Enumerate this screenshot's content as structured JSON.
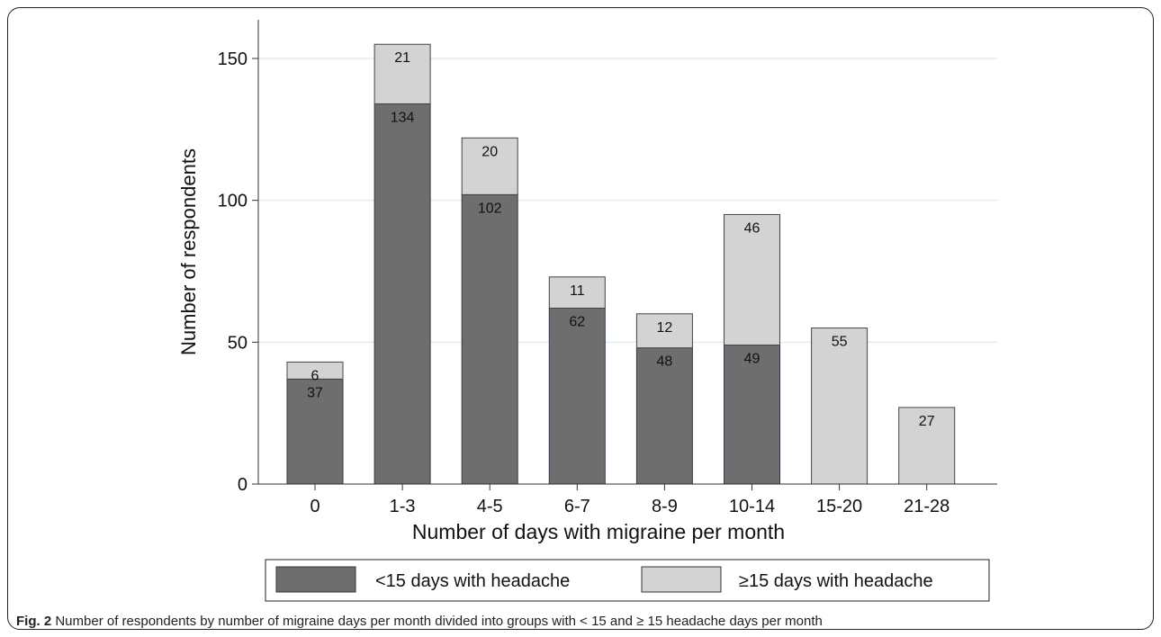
{
  "chart_data": {
    "type": "bar",
    "stacked": true,
    "categories": [
      "0",
      "1-3",
      "4-5",
      "6-7",
      "8-9",
      "10-14",
      "15-20",
      "21-28"
    ],
    "series": [
      {
        "name": "<15 days with headache",
        "values": [
          37,
          134,
          102,
          62,
          48,
          49,
          0,
          0
        ],
        "color": "#6e6e6e"
      },
      {
        "name": "≥15 days with headache",
        "values": [
          6,
          21,
          20,
          11,
          12,
          46,
          55,
          27
        ],
        "color": "#d3d3d3"
      }
    ],
    "xlabel": "Number of days with migraine per month",
    "ylabel": "Number of respondents",
    "yticks": [
      0,
      50,
      100,
      150
    ],
    "ylim": [
      0,
      160
    ],
    "grid": true,
    "legend_position": "bottom"
  },
  "caption": {
    "label": "Fig. 2",
    "text": "Number of respondents by number of migraine days per month divided into groups with < 15 and ≥ 15 headache days per month"
  }
}
